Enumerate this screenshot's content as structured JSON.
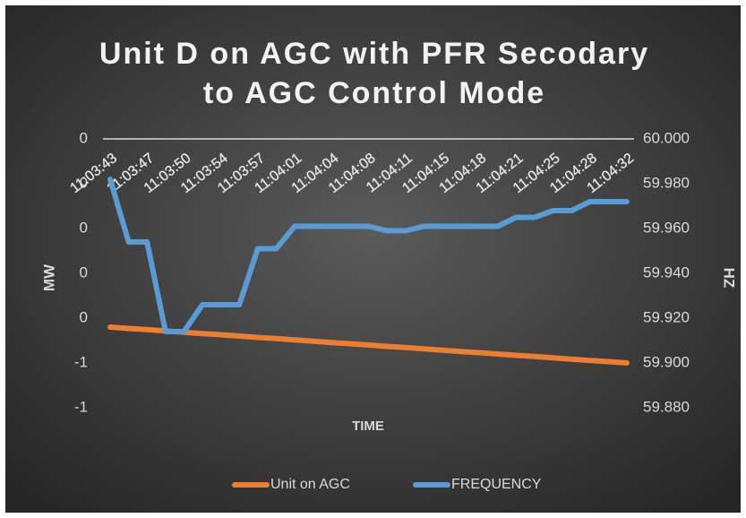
{
  "chart_data": {
    "type": "line",
    "title": [
      "Unit D on AGC with PFR Secodary",
      "to AGC Control Mode"
    ],
    "y_label": "MW",
    "y2_label": "HZ",
    "x_label": "TIME",
    "categories": [
      "11:03:43",
      null,
      "11:03:47",
      null,
      "11:03:50",
      null,
      "11:03:54",
      null,
      "11:03:57",
      null,
      "11:04:01",
      null,
      "11:04:04",
      null,
      "11:04:08",
      null,
      "11:04:11",
      null,
      "11:04:15",
      null,
      "11:04:18",
      null,
      "11:04:21",
      null,
      "11:04:25",
      null,
      "11:04:28",
      null,
      "11:04:32"
    ],
    "ylim": [
      -0.8,
      0.4
    ],
    "yticks": [
      {
        "value": 0.4,
        "label": "0"
      },
      {
        "value": 0.2,
        "label": "0"
      },
      0,
      {
        "value": -0.2,
        "label": "0"
      },
      {
        "value": -0.4,
        "label": "0"
      },
      {
        "value": -0.6,
        "label": "-1"
      },
      {
        "value": -0.8,
        "label": "-1"
      }
    ],
    "y2lim": [
      59.88,
      60.0
    ],
    "y2ticks": [
      {
        "value": 60.0,
        "label": "60.000"
      },
      {
        "value": 59.98,
        "label": "59.980"
      },
      {
        "value": 59.96,
        "label": "59.960"
      },
      {
        "value": 59.94,
        "label": "59.940"
      },
      {
        "value": 59.92,
        "label": "59.920"
      },
      {
        "value": 59.9,
        "label": "59.900"
      },
      {
        "value": 59.88,
        "label": "59.880"
      }
    ],
    "legend": "bottom",
    "series": [
      {
        "name": "Unit on AGC",
        "color": "#ed7d31",
        "values": [
          -0.44,
          -0.446,
          -0.451,
          -0.457,
          -0.463,
          -0.469,
          -0.474,
          -0.48,
          -0.486,
          -0.491,
          -0.497,
          -0.503,
          -0.509,
          -0.514,
          -0.52,
          -0.526,
          -0.531,
          -0.537,
          -0.543,
          -0.549,
          -0.554,
          -0.56,
          -0.566,
          -0.571,
          -0.577,
          -0.583,
          -0.589,
          -0.594,
          -0.6
        ]
      },
      {
        "name": "FREQUENCY",
        "color": "#5b9bd5",
        "axis": "y2",
        "values": [
          59.982,
          59.954,
          59.954,
          59.914,
          59.914,
          59.926,
          59.926,
          59.926,
          59.951,
          59.951,
          59.961,
          59.961,
          59.961,
          59.961,
          59.961,
          59.959,
          59.959,
          59.961,
          59.961,
          59.961,
          59.961,
          59.961,
          59.965,
          59.965,
          59.968,
          59.968,
          59.972,
          59.972,
          59.972
        ]
      }
    ]
  }
}
